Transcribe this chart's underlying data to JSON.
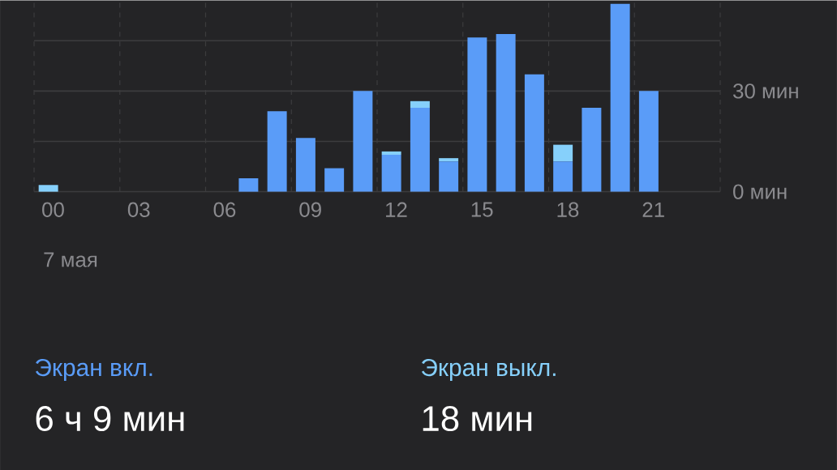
{
  "chart_data": {
    "type": "bar",
    "stacked": true,
    "categories": [
      "00",
      null,
      null,
      "03",
      null,
      null,
      "06",
      null,
      null,
      "09",
      null,
      null,
      "12",
      null,
      null,
      "15",
      null,
      null,
      "18",
      null,
      null,
      "21",
      null,
      null
    ],
    "series": [
      {
        "name": "Экран вкл.",
        "color": "#5a9cf8",
        "values": [
          0,
          0,
          0,
          0,
          0,
          0,
          0,
          4,
          24,
          16,
          7,
          30,
          11,
          25,
          9,
          46,
          47,
          35,
          9,
          25,
          56,
          30,
          0,
          0
        ]
      },
      {
        "name": "Экран выкл.",
        "color": "#86d0fb",
        "values": [
          2,
          0,
          0,
          0,
          0,
          0,
          0,
          0,
          0,
          0,
          0,
          0,
          1,
          2,
          1,
          0,
          0,
          0,
          5,
          0,
          0,
          0,
          0,
          0
        ]
      }
    ],
    "ylim": [
      0,
      57
    ],
    "yticks": [
      {
        "value": 0,
        "label": "0 мин"
      },
      {
        "value": 15,
        "label": null
      },
      {
        "value": 30,
        "label": "30 мин"
      },
      {
        "value": 45,
        "label": null
      }
    ],
    "grid": true,
    "legend": "bottom",
    "annotations": [
      "7 мая",
      "6 ч 9 мин",
      "18 мин"
    ]
  }
}
